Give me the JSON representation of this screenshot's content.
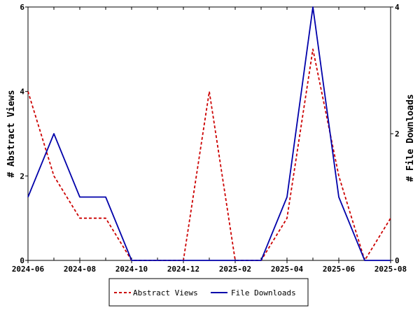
{
  "chart_data": {
    "type": "line",
    "x": [
      "2024-06",
      "2024-07",
      "2024-08",
      "2024-09",
      "2024-10",
      "2024-11",
      "2024-12",
      "2025-01",
      "2025-02",
      "2025-03",
      "2025-04",
      "2025-05",
      "2025-06",
      "2025-07",
      "2025-08"
    ],
    "x_tick_labels": [
      "2024-06",
      "2024-08",
      "2024-10",
      "2024-12",
      "2025-02",
      "2025-04",
      "2025-06",
      "2025-08"
    ],
    "ylabel": "# Abstract Views",
    "y2label": "# File Downloads",
    "ylim": [
      0,
      6
    ],
    "y_ticks": [
      0,
      2,
      4,
      6
    ],
    "y2lim": [
      0,
      4
    ],
    "y2_ticks": [
      0,
      2,
      4
    ],
    "legend_position": "bottom",
    "grid": false,
    "series": [
      {
        "name": "Abstract Views",
        "axis": "left",
        "color": "#cc0000",
        "dash": "dashed",
        "values": [
          4,
          2,
          1,
          1,
          0,
          0,
          0,
          4,
          0,
          0,
          1,
          5,
          2,
          0,
          1
        ]
      },
      {
        "name": "File Downloads",
        "axis": "right",
        "color": "#0000aa",
        "dash": "solid",
        "values": [
          1,
          2,
          1,
          1,
          0,
          0,
          0,
          0,
          0,
          0,
          1,
          4,
          1,
          0,
          0
        ]
      }
    ]
  }
}
